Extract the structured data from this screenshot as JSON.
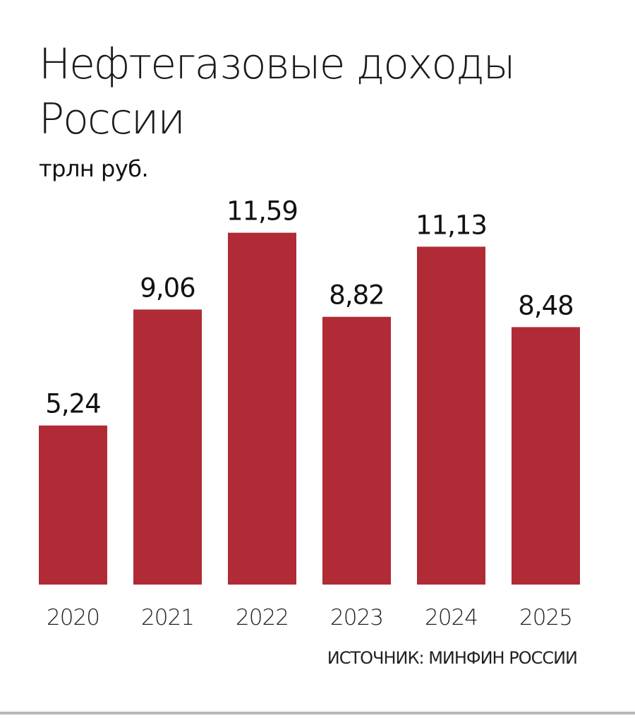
{
  "chart_data": {
    "type": "bar",
    "title_lines": [
      "Нефтегазовые доходы",
      "России"
    ],
    "subtitle": "трлн руб.",
    "categories": [
      "2020",
      "2021",
      "2022",
      "2023",
      "2024",
      "2025"
    ],
    "values": [
      5.24,
      9.06,
      11.59,
      8.82,
      11.13,
      8.48
    ],
    "value_labels": [
      "5,24",
      "9,06",
      "11,59",
      "8,82",
      "11,13",
      "8,48"
    ],
    "ylim": [
      0,
      13
    ],
    "grid": false,
    "legend": "none",
    "bar_color": "#b02b36",
    "source": "ИСТОЧНИК: МИНФИН РОССИИ"
  }
}
